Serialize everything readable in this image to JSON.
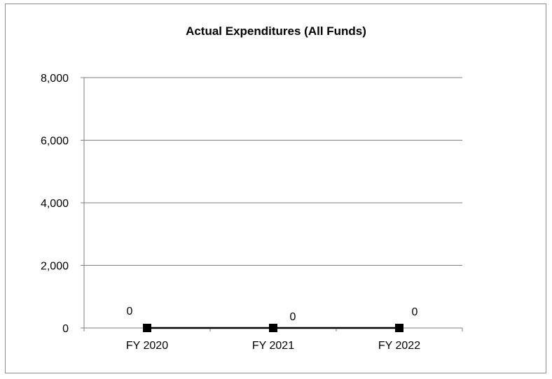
{
  "chart_data": {
    "type": "line",
    "title": "Actual Expenditures (All Funds)",
    "categories": [
      "FY 2020",
      "FY 2021",
      "FY 2022"
    ],
    "series": [
      {
        "values": [
          0,
          0,
          0
        ],
        "data_labels": [
          "0",
          "0",
          "0"
        ]
      }
    ],
    "ylim": [
      0,
      8000
    ],
    "yticks": [
      0,
      2000,
      4000,
      6000,
      8000
    ],
    "ytick_labels": [
      "0",
      "2,000",
      "4,000",
      "6,000",
      "8,000"
    ],
    "grid": true,
    "legend": "none",
    "colors": {
      "line": "#000000",
      "grid": "#7f7f7f",
      "marker": "#000000"
    }
  }
}
